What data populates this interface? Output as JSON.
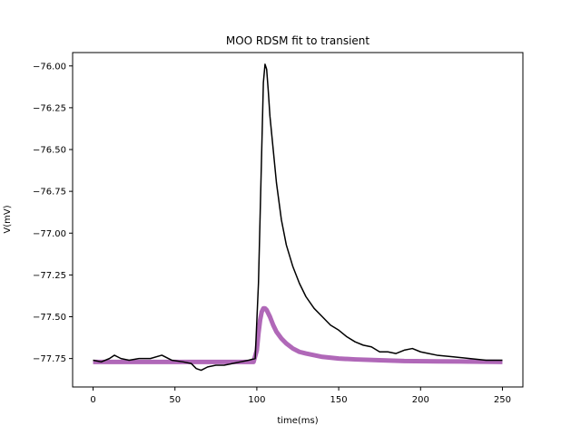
{
  "chart_data": {
    "type": "line",
    "title": "MOO RDSM fit to transient",
    "xlabel": "time(ms)",
    "ylabel": "V(mV)",
    "xlim": [
      -12.5,
      262.5
    ],
    "ylim": [
      -77.92,
      -75.92
    ],
    "grid": false,
    "xticks": [
      0,
      50,
      100,
      150,
      200,
      250
    ],
    "xtick_labels": [
      "0",
      "50",
      "100",
      "150",
      "200",
      "250"
    ],
    "yticks": [
      -76.0,
      -76.25,
      -76.5,
      -76.75,
      -77.0,
      -77.25,
      -77.5,
      -77.75
    ],
    "ytick_labels": [
      "−76.00",
      "−76.25",
      "−76.50",
      "−76.75",
      "−77.00",
      "−77.25",
      "−77.50",
      "−77.75"
    ],
    "series": [
      {
        "color": "#000000",
        "stroke_width": 1.5,
        "x": [
          0,
          5,
          10,
          13,
          17,
          22,
          28,
          35,
          42,
          48,
          55,
          60,
          63,
          66,
          70,
          75,
          80,
          85,
          90,
          95,
          99,
          101,
          102,
          103,
          104,
          105,
          106,
          107,
          108,
          110,
          112,
          115,
          118,
          122,
          126,
          130,
          135,
          140,
          145,
          150,
          155,
          160,
          165,
          170,
          175,
          180,
          185,
          190,
          195,
          200,
          205,
          210,
          220,
          230,
          240,
          250
        ],
        "y": [
          -77.76,
          -77.77,
          -77.75,
          -77.73,
          -77.75,
          -77.76,
          -77.75,
          -77.75,
          -77.73,
          -77.76,
          -77.77,
          -77.78,
          -77.81,
          -77.82,
          -77.8,
          -77.79,
          -77.79,
          -77.78,
          -77.77,
          -77.76,
          -77.75,
          -77.3,
          -76.9,
          -76.5,
          -76.1,
          -75.99,
          -76.02,
          -76.15,
          -76.3,
          -76.5,
          -76.7,
          -76.92,
          -77.07,
          -77.2,
          -77.3,
          -77.38,
          -77.45,
          -77.5,
          -77.55,
          -77.58,
          -77.62,
          -77.65,
          -77.67,
          -77.68,
          -77.71,
          -77.71,
          -77.72,
          -77.7,
          -77.69,
          -77.71,
          -77.72,
          -77.73,
          -77.74,
          -77.75,
          -77.76,
          -77.76
        ]
      },
      {
        "color": "#b068b8",
        "stroke_width": 5,
        "x": [
          0,
          50,
          98,
          100,
          101,
          102,
          103,
          104,
          105,
          106,
          108,
          110,
          112,
          115,
          118,
          122,
          126,
          130,
          135,
          140,
          150,
          160,
          175,
          190,
          210,
          230,
          250
        ],
        "y": [
          -77.77,
          -77.77,
          -77.77,
          -77.7,
          -77.6,
          -77.52,
          -77.47,
          -77.45,
          -77.45,
          -77.46,
          -77.5,
          -77.55,
          -77.59,
          -77.63,
          -77.66,
          -77.69,
          -77.71,
          -77.72,
          -77.73,
          -77.74,
          -77.75,
          -77.755,
          -77.76,
          -77.765,
          -77.767,
          -77.768,
          -77.77
        ]
      }
    ]
  }
}
